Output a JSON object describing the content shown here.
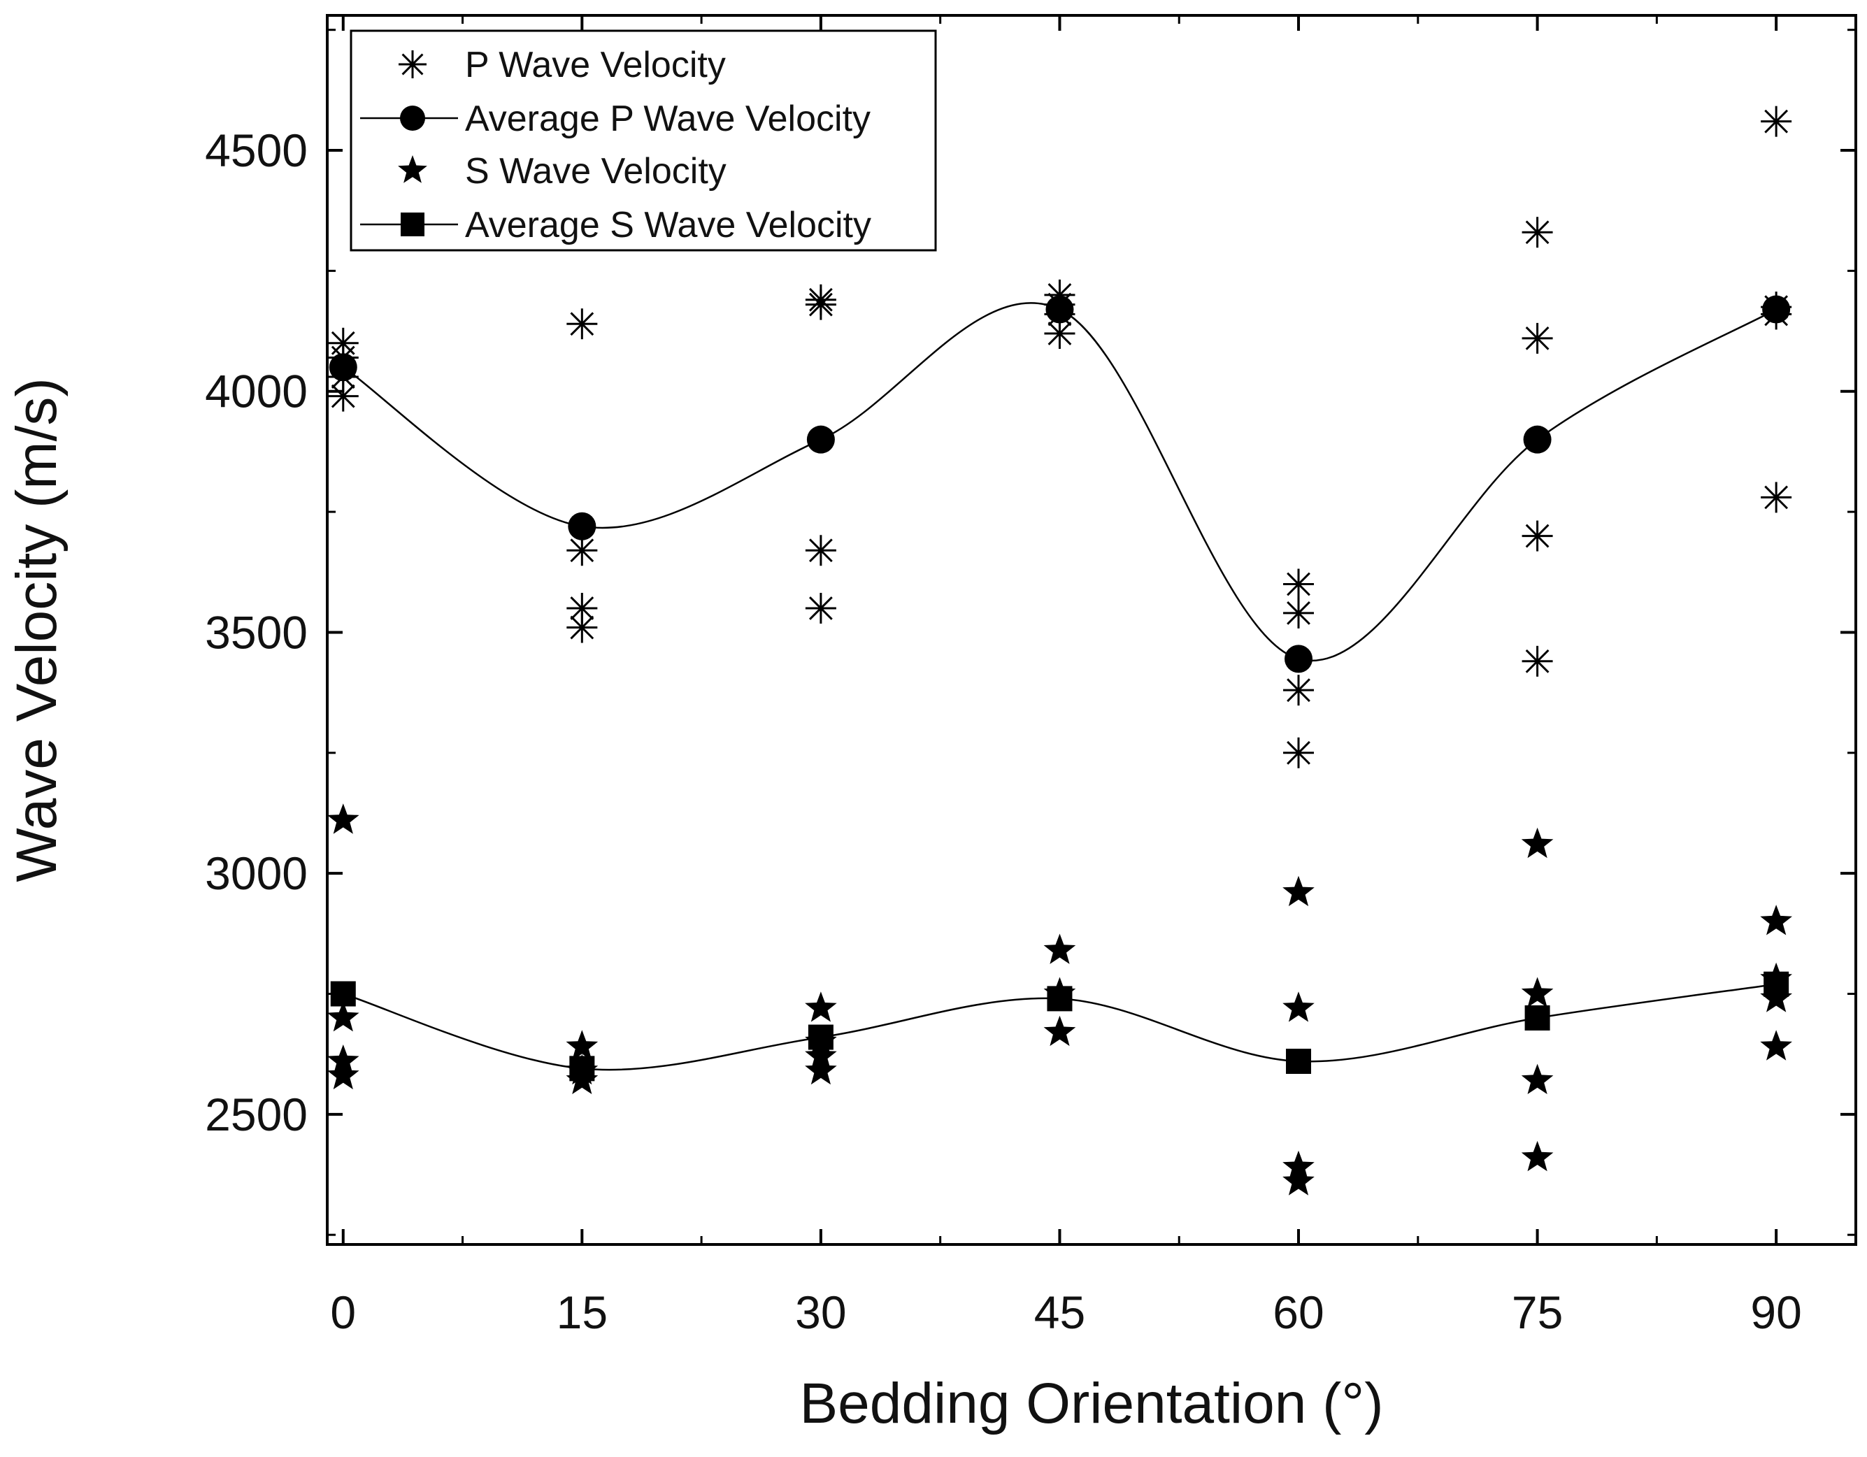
{
  "chart_data": {
    "type": "scatter",
    "xlabel": "Bedding Orientation (°)",
    "ylabel": "Wave Velocity (m/s)",
    "xlim": [
      -1,
      95
    ],
    "ylim": [
      2230,
      4780
    ],
    "x_ticks": [
      0,
      15,
      30,
      45,
      60,
      75,
      90
    ],
    "y_ticks": [
      2500,
      3000,
      3500,
      4000,
      4500
    ],
    "x_tick_labels": [
      "0",
      "15",
      "30",
      "45",
      "60",
      "75",
      "90"
    ],
    "y_tick_labels": [
      "2500",
      "3000",
      "3500",
      "4000",
      "4500"
    ],
    "legend_position": "top-left",
    "legend": [
      "P Wave Velocity",
      "Average P Wave Velocity",
      "S Wave Velocity",
      "Average S Wave Velocity"
    ],
    "series": [
      {
        "name": "P Wave Velocity",
        "marker": "asterisk",
        "points": [
          [
            0,
            4100
          ],
          [
            0,
            4070
          ],
          [
            0,
            4030
          ],
          [
            0,
            3990
          ],
          [
            15,
            4140
          ],
          [
            15,
            3670
          ],
          [
            15,
            3550
          ],
          [
            15,
            3510
          ],
          [
            30,
            4190
          ],
          [
            30,
            4180
          ],
          [
            30,
            3670
          ],
          [
            30,
            3550
          ],
          [
            45,
            4200
          ],
          [
            45,
            4180
          ],
          [
            45,
            4160
          ],
          [
            45,
            4120
          ],
          [
            60,
            3600
          ],
          [
            60,
            3540
          ],
          [
            60,
            3380
          ],
          [
            60,
            3250
          ],
          [
            75,
            4330
          ],
          [
            75,
            4110
          ],
          [
            75,
            3700
          ],
          [
            75,
            3440
          ],
          [
            90,
            4560
          ],
          [
            90,
            4175
          ],
          [
            90,
            4160
          ],
          [
            90,
            3780
          ]
        ]
      },
      {
        "name": "Average P Wave Velocity",
        "marker": "circle",
        "line": "smooth",
        "x": [
          0,
          15,
          30,
          45,
          60,
          75,
          90
        ],
        "values": [
          4050,
          3720,
          3900,
          4170,
          3445,
          3900,
          4170
        ]
      },
      {
        "name": "S Wave Velocity",
        "marker": "star",
        "points": [
          [
            0,
            3110
          ],
          [
            0,
            2700
          ],
          [
            0,
            2610
          ],
          [
            0,
            2580
          ],
          [
            15,
            2640
          ],
          [
            15,
            2590
          ],
          [
            15,
            2570
          ],
          [
            30,
            2720
          ],
          [
            30,
            2650
          ],
          [
            30,
            2620
          ],
          [
            30,
            2590
          ],
          [
            45,
            2840
          ],
          [
            45,
            2750
          ],
          [
            45,
            2670
          ],
          [
            60,
            2960
          ],
          [
            60,
            2720
          ],
          [
            60,
            2390
          ],
          [
            60,
            2360
          ],
          [
            75,
            3060
          ],
          [
            75,
            2750
          ],
          [
            75,
            2570
          ],
          [
            75,
            2410
          ],
          [
            90,
            2900
          ],
          [
            90,
            2780
          ],
          [
            90,
            2740
          ],
          [
            90,
            2640
          ]
        ]
      },
      {
        "name": "Average S Wave Velocity",
        "marker": "square",
        "line": "smooth",
        "x": [
          0,
          15,
          30,
          45,
          60,
          75,
          90
        ],
        "values": [
          2750,
          2595,
          2660,
          2740,
          2610,
          2700,
          2770
        ]
      }
    ]
  }
}
